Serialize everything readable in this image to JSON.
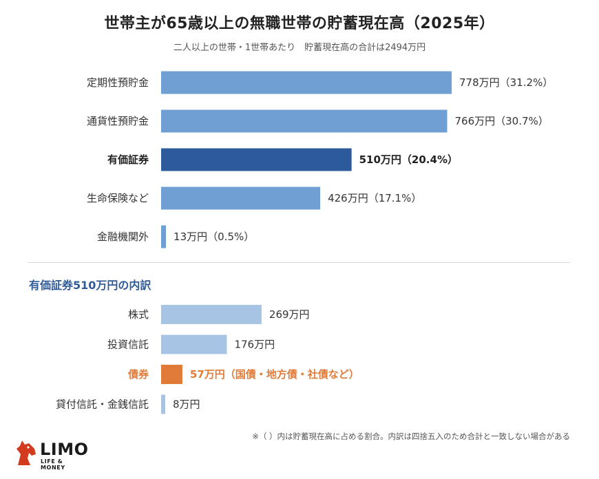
{
  "colors": {
    "bar": "#6f9fd3",
    "bar_highlight": "#2c5a9c",
    "bar_breakdown": "#a8c4e5",
    "bar_breakdown_highlight": "#e07b39",
    "section_title": "#2f5c99",
    "text": "#333333"
  },
  "chart_data": [
    {
      "type": "bar",
      "orientation": "horizontal",
      "title": "世帯主が65歳以上の無職世帯の貯蓄現在高（2025年）",
      "subtitle": "二人以上の世帯・1世帯あたり　貯蓄現在高の合計は2494万円",
      "unit": "万円",
      "categories": [
        "定期性預貯金",
        "通貨性預貯金",
        "有価証券",
        "生命保険など",
        "金融機関外"
      ],
      "values": [
        778,
        766,
        510,
        426,
        13
      ],
      "percent": [
        31.2,
        30.7,
        20.4,
        17.1,
        0.5
      ],
      "labels": [
        "778万円（31.2%）",
        "766万円（30.7%）",
        "510万円（20.4%）",
        "426万円（17.1%）",
        "13万円（0.5%）"
      ],
      "highlight": "有価証券"
    },
    {
      "type": "bar",
      "orientation": "horizontal",
      "title": "有価証券510万円の内訳",
      "unit": "万円",
      "categories": [
        "株式",
        "投資信託",
        "債券",
        "貸付信託・金銭信託"
      ],
      "values": [
        269,
        176,
        57,
        8
      ],
      "labels": [
        "269万円",
        "176万円",
        "57万円（国債・地方債・社債など）",
        "8万円"
      ],
      "highlight": "債券"
    }
  ],
  "footnote": "※（ ）内は貯蓄現在高に占める割合。内訳は四捨五入のため合計と一致しない場合がある",
  "logo": {
    "text": "LIMO",
    "subtext": "LIFE & MONEY",
    "icon": "horse-head-icon"
  }
}
